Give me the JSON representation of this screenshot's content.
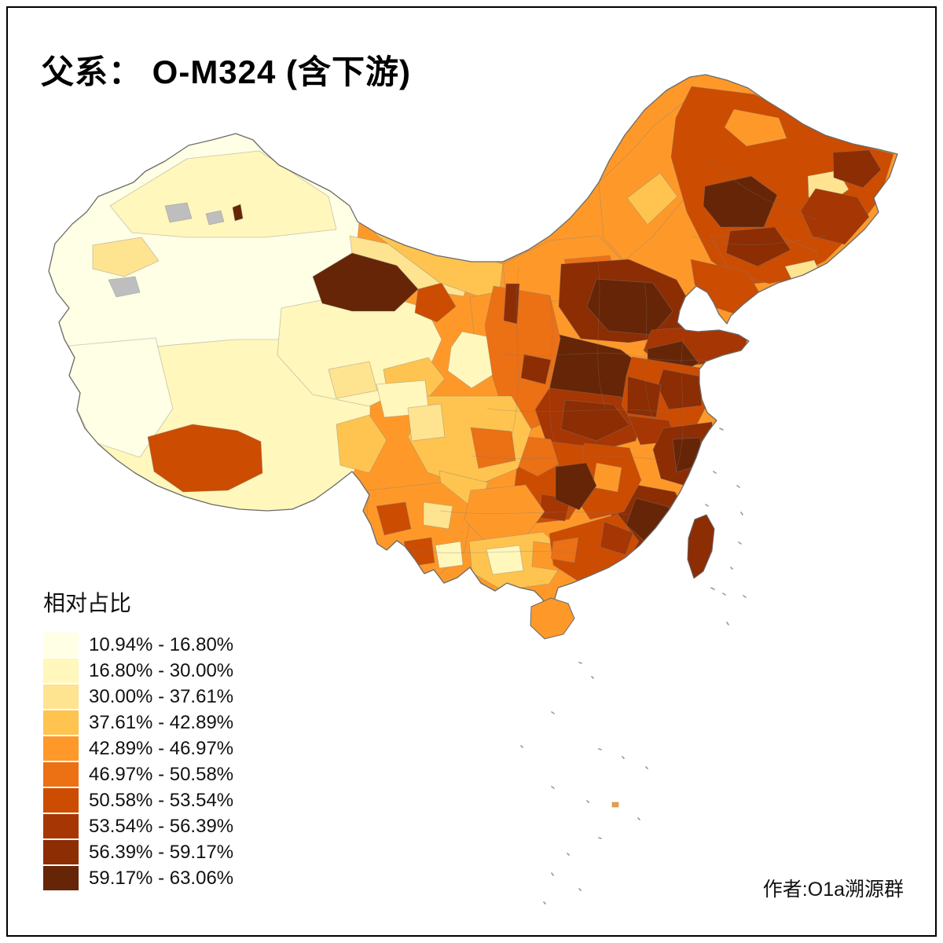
{
  "title": "父系： O-M324 (含下游)",
  "legend": {
    "title": "相对占比",
    "classes": [
      {
        "range": "10.94% - 16.80%",
        "color": "#FFFFE5"
      },
      {
        "range": "16.80% - 30.00%",
        "color": "#FFF7BC"
      },
      {
        "range": "30.00% - 37.61%",
        "color": "#FEE391"
      },
      {
        "range": "37.61% - 42.89%",
        "color": "#FEC44F"
      },
      {
        "range": "42.89% - 46.97%",
        "color": "#FE9929"
      },
      {
        "range": "46.97% - 50.58%",
        "color": "#EC7014"
      },
      {
        "range": "50.58% - 53.54%",
        "color": "#CC4C02"
      },
      {
        "range": "53.54% - 56.39%",
        "color": "#A63603"
      },
      {
        "range": "56.39% - 59.17%",
        "color": "#8C2D04"
      },
      {
        "range": "59.17% - 63.06%",
        "color": "#662506"
      }
    ]
  },
  "attribution": "作者:O1a溯源群",
  "map": {
    "type": "choropleth",
    "outline_color": "#6a6a6a",
    "na_color": "#BEBEBE",
    "islet_color": "#9a9a9a",
    "regions": {
      "country-base": 4,
      "xinjiang": 0,
      "xj-north": 1,
      "xj-ili": 2,
      "xj-dark-speck": 9,
      "na-1": "na",
      "na-2": "na",
      "na-3": "na",
      "tibet": 1,
      "tibet-west": 0,
      "tibet-south": 6,
      "tibet-east": 3,
      "qinghai": 1,
      "qinghai-east": 3,
      "qinghai-mid": 2,
      "gansu-hexi": 2,
      "gansu-dark": 9,
      "gansu-dark-east": 6,
      "alxa": 3,
      "ningxia": 4,
      "gansu-south-pale": 1,
      "im-mid": 4,
      "im-mid-dark": 5,
      "im-ne": 4,
      "im-ne-light": 3,
      "heilongjiang": 6,
      "hlj-pale": 2,
      "hlj-dark": 9,
      "hlj-dark2": 8,
      "hlj-orange": 4,
      "hlj-east": 7,
      "jilin": 6,
      "jilin-dark": 8,
      "jilin-pale": 2,
      "liaoning": 6,
      "hebei-shanxi": 8,
      "hebei-core": 9,
      "shandong": 7,
      "shandong-west": 9,
      "henan": 9,
      "shaanxi": 5,
      "shaanxi-north-dark": 8,
      "xian-dark": 8,
      "hubei": 7,
      "hubei-dark": 8,
      "anhui-jiangsu": 6,
      "jiangsu-south-dark": 8,
      "anhui-dark": 8,
      "wannan": 7,
      "zhejiang": 8,
      "zhejiang-core": 9,
      "fujian": 8,
      "fujian-core": 9,
      "jiangxi": 6,
      "jiangxi-light": 4,
      "hunan": 6,
      "hunan-south": 7,
      "cq-guizhou-dark": 9,
      "chongqing": 5,
      "sichuan": 3,
      "sichuan-mid": 5,
      "sichuan-west-pale": 1,
      "sichuan-west2": 2,
      "sichuan-south": 3,
      "yunnan": 4,
      "yunnan-dark1": 6,
      "yunnan-dark2": 6,
      "yunnan-pale": 1,
      "yunnan-light": 2,
      "guizhou": 4,
      "guangxi": 3,
      "guangxi-pale": 1,
      "guangxi-east": 4,
      "guangdong": 6,
      "guangdong-east-dark": 7,
      "guangdong-west": 5,
      "hainan-island": 4,
      "taiwan-island": 8
    }
  }
}
